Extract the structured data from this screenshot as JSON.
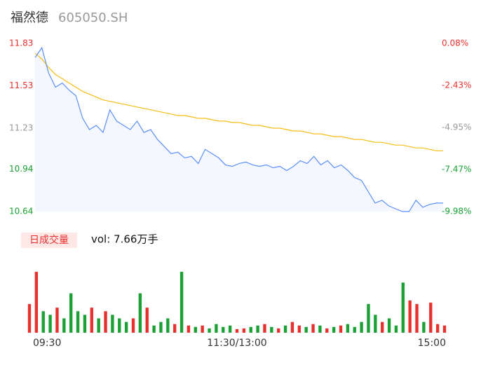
{
  "header": {
    "name": "福然德",
    "code": "605050.SH"
  },
  "chart_data": [
    {
      "type": "line",
      "x": [
        0,
        4,
        8,
        12,
        16,
        20,
        24,
        28,
        32,
        36,
        40,
        44,
        48,
        52,
        56,
        60,
        64,
        68,
        72,
        76,
        80,
        84,
        88,
        92,
        96,
        100,
        104,
        108,
        112,
        116,
        120,
        124,
        128,
        132,
        136,
        140,
        144,
        148,
        152,
        156,
        160,
        164,
        168,
        172,
        176,
        180,
        184,
        188,
        192,
        196,
        200,
        204,
        208,
        212,
        216,
        220,
        224,
        228,
        232,
        236,
        240
      ],
      "xlim": [
        0,
        240
      ],
      "series": [
        {
          "color": "#5b8ff9",
          "values": [
            11.73,
            11.8,
            11.62,
            11.52,
            11.55,
            11.5,
            11.46,
            11.3,
            11.22,
            11.25,
            11.2,
            11.36,
            11.28,
            11.25,
            11.22,
            11.28,
            11.2,
            11.22,
            11.15,
            11.1,
            11.05,
            11.06,
            11.02,
            11.03,
            10.98,
            11.08,
            11.05,
            11.02,
            10.97,
            10.96,
            10.98,
            10.99,
            10.97,
            10.96,
            10.97,
            10.95,
            10.96,
            10.93,
            10.96,
            11.0,
            10.98,
            11.03,
            10.97,
            11.0,
            10.95,
            10.97,
            10.93,
            10.88,
            10.86,
            10.78,
            10.7,
            10.72,
            10.68,
            10.66,
            10.64,
            10.64,
            10.72,
            10.67,
            10.69,
            10.7,
            10.7
          ]
        },
        {
          "color": "#f6bd16",
          "values": [
            11.76,
            11.72,
            11.66,
            11.61,
            11.58,
            11.55,
            11.52,
            11.49,
            11.47,
            11.45,
            11.43,
            11.42,
            11.41,
            11.4,
            11.39,
            11.38,
            11.37,
            11.36,
            11.35,
            11.34,
            11.33,
            11.32,
            11.32,
            11.31,
            11.3,
            11.3,
            11.29,
            11.28,
            11.28,
            11.27,
            11.27,
            11.26,
            11.25,
            11.25,
            11.24,
            11.23,
            11.23,
            11.22,
            11.21,
            11.21,
            11.2,
            11.19,
            11.19,
            11.18,
            11.17,
            11.17,
            11.16,
            11.15,
            11.15,
            11.14,
            11.13,
            11.13,
            11.12,
            11.11,
            11.11,
            11.1,
            11.09,
            11.09,
            11.08,
            11.07,
            11.07
          ]
        }
      ],
      "ylim": [
        10.64,
        11.83
      ],
      "yticks": [
        11.83,
        11.53,
        11.23,
        10.94,
        10.64
      ],
      "y2lim": [
        -9.98,
        0.08
      ],
      "y2ticks": [
        {
          "value": 0.08,
          "label": "0.08%"
        },
        {
          "value": -2.43,
          "label": "-2.43%"
        },
        {
          "value": -4.95,
          "label": "-4.95%"
        },
        {
          "value": -7.47,
          "label": "-7.47%"
        },
        {
          "value": -9.98,
          "label": "-9.98%"
        }
      ],
      "tick_colors": [
        "#e8312f",
        "#e8312f",
        "#999999",
        "#1aa034",
        "#1aa034"
      ],
      "area_color": "#f4f7fd"
    },
    {
      "type": "bar",
      "title": "日成交量",
      "subtitle": "vol: 7.66万手",
      "x": [
        0,
        4,
        8,
        12,
        16,
        20,
        24,
        28,
        32,
        36,
        40,
        44,
        48,
        52,
        56,
        60,
        64,
        68,
        72,
        76,
        80,
        84,
        88,
        92,
        96,
        100,
        104,
        108,
        112,
        116,
        120,
        124,
        128,
        132,
        136,
        140,
        144,
        148,
        152,
        156,
        160,
        164,
        168,
        172,
        176,
        180,
        184,
        188,
        192,
        196,
        200,
        204,
        208,
        212,
        216,
        220,
        224,
        228,
        232,
        236,
        240
      ],
      "xlim": [
        0,
        240
      ],
      "values": [
        40,
        85,
        30,
        25,
        35,
        20,
        55,
        30,
        25,
        35,
        20,
        30,
        25,
        20,
        15,
        20,
        55,
        35,
        10,
        15,
        20,
        12,
        85,
        10,
        8,
        10,
        6,
        12,
        8,
        10,
        5,
        6,
        8,
        10,
        12,
        8,
        6,
        10,
        15,
        10,
        8,
        12,
        10,
        6,
        8,
        10,
        12,
        8,
        15,
        40,
        25,
        15,
        20,
        10,
        70,
        45,
        40,
        15,
        42,
        12,
        10
      ],
      "ylim": [
        0,
        90
      ],
      "up_color": "#e8312f",
      "down_color": "#1aa034",
      "xticks": [
        {
          "value": 0,
          "label": "09:30"
        },
        {
          "value": 120,
          "label": "11:30/13:00"
        },
        {
          "value": 240,
          "label": "15:00"
        }
      ]
    }
  ]
}
